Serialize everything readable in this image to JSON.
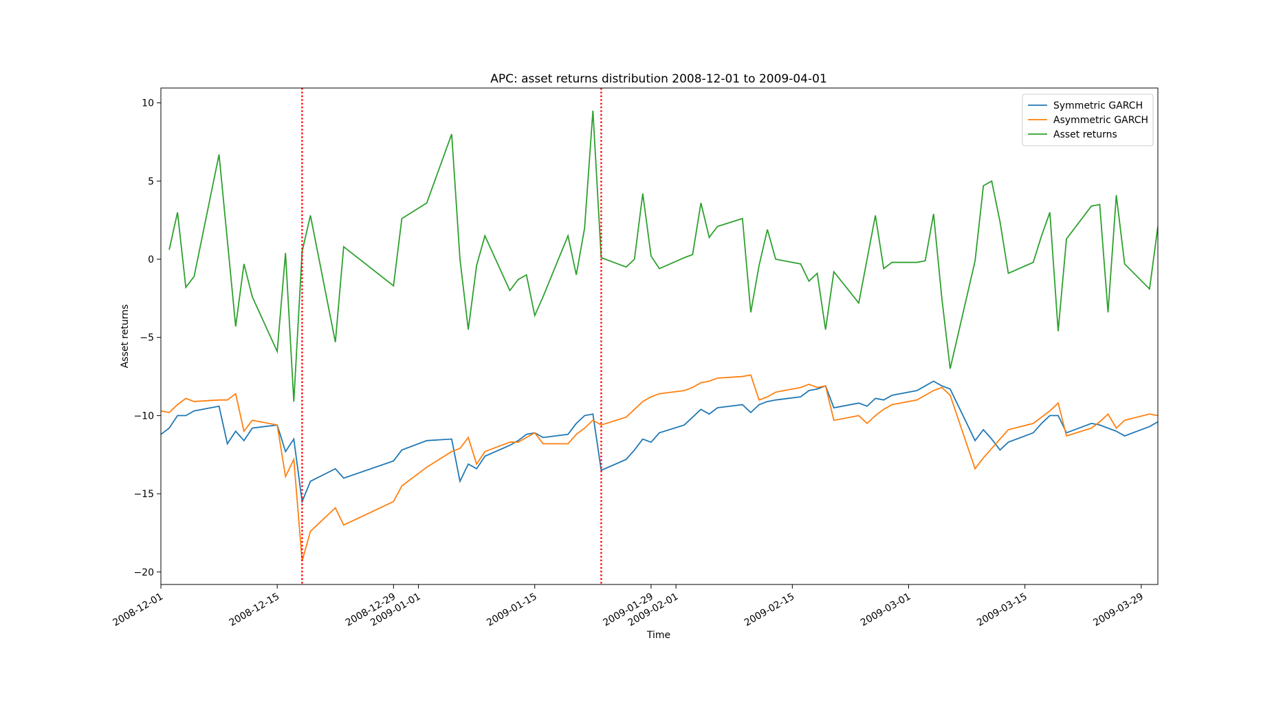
{
  "chart_data": {
    "type": "line",
    "title": "APC: asset returns distribution 2008-12-01 to 2009-04-01",
    "xlabel": "Time",
    "ylabel": "Asset returns",
    "x": [
      "2008-12-01",
      "2008-12-02",
      "2008-12-03",
      "2008-12-04",
      "2008-12-05",
      "2008-12-08",
      "2008-12-09",
      "2008-12-10",
      "2008-12-11",
      "2008-12-12",
      "2008-12-15",
      "2008-12-16",
      "2008-12-17",
      "2008-12-18",
      "2008-12-19",
      "2008-12-22",
      "2008-12-23",
      "2008-12-29",
      "2008-12-30",
      "2009-01-02",
      "2009-01-05",
      "2009-01-06",
      "2009-01-07",
      "2009-01-08",
      "2009-01-09",
      "2009-01-12",
      "2009-01-13",
      "2009-01-14",
      "2009-01-15",
      "2009-01-16",
      "2009-01-19",
      "2009-01-20",
      "2009-01-21",
      "2009-01-22",
      "2009-01-23",
      "2009-01-26",
      "2009-01-27",
      "2009-01-28",
      "2009-01-29",
      "2009-01-30",
      "2009-02-02",
      "2009-02-03",
      "2009-02-04",
      "2009-02-05",
      "2009-02-06",
      "2009-02-09",
      "2009-02-10",
      "2009-02-11",
      "2009-02-12",
      "2009-02-13",
      "2009-02-16",
      "2009-02-17",
      "2009-02-18",
      "2009-02-19",
      "2009-02-20",
      "2009-02-23",
      "2009-02-24",
      "2009-02-25",
      "2009-02-26",
      "2009-02-27",
      "2009-03-02",
      "2009-03-03",
      "2009-03-04",
      "2009-03-05",
      "2009-03-06",
      "2009-03-09",
      "2009-03-10",
      "2009-03-11",
      "2009-03-12",
      "2009-03-13",
      "2009-03-16",
      "2009-03-17",
      "2009-03-18",
      "2009-03-19",
      "2009-03-20",
      "2009-03-23",
      "2009-03-24",
      "2009-03-25",
      "2009-03-26",
      "2009-03-27",
      "2009-03-30",
      "2009-03-31"
    ],
    "series": [
      {
        "name": "Symmetric GARCH",
        "color": "#1f77b4",
        "values": [
          -11.2,
          -10.8,
          -10.0,
          -10.0,
          -9.7,
          -9.4,
          -11.8,
          -11.0,
          -11.6,
          -10.8,
          -10.6,
          -12.3,
          -11.5,
          -15.5,
          -14.2,
          -13.4,
          -14.0,
          -12.9,
          -12.2,
          -11.6,
          -11.5,
          -14.2,
          -13.1,
          -13.4,
          -12.6,
          -11.9,
          -11.6,
          -11.2,
          -11.1,
          -11.4,
          -11.2,
          -10.5,
          -10.0,
          -9.9,
          -13.5,
          -12.8,
          -12.2,
          -11.5,
          -11.7,
          -11.1,
          -10.6,
          -10.1,
          -9.6,
          -9.9,
          -9.5,
          -9.3,
          -9.8,
          -9.3,
          -9.1,
          -9.0,
          -8.8,
          -8.4,
          -8.3,
          -8.1,
          -9.5,
          -9.2,
          -9.4,
          -8.9,
          -9.0,
          -8.7,
          -8.4,
          -8.1,
          -7.8,
          -8.1,
          -8.3,
          -11.6,
          -10.9,
          -11.5,
          -12.2,
          -11.7,
          -11.1,
          -10.5,
          -10.0,
          -10.0,
          -11.1,
          -10.5,
          -10.6,
          -10.8,
          -11.0,
          -11.3,
          -10.7,
          -10.4
        ]
      },
      {
        "name": "Asymmetric GARCH",
        "color": "#ff7f0e",
        "values": [
          -9.7,
          -9.8,
          -9.3,
          -8.9,
          -9.1,
          -9.0,
          -9.0,
          -8.6,
          -11.0,
          -10.3,
          -10.6,
          -13.9,
          -12.8,
          -19.3,
          -17.4,
          -15.9,
          -17.0,
          -15.5,
          -14.5,
          -13.3,
          -12.3,
          -12.1,
          -11.4,
          -13.1,
          -12.3,
          -11.7,
          -11.7,
          -11.4,
          -11.1,
          -11.8,
          -11.8,
          -11.2,
          -10.8,
          -10.3,
          -10.6,
          -10.1,
          -9.6,
          -9.1,
          -8.8,
          -8.6,
          -8.4,
          -8.2,
          -7.9,
          -7.8,
          -7.6,
          -7.5,
          -7.4,
          -9.0,
          -8.8,
          -8.5,
          -8.2,
          -8.0,
          -8.2,
          -8.1,
          -10.3,
          -10.0,
          -10.5,
          -10.0,
          -9.6,
          -9.3,
          -9.0,
          -8.7,
          -8.4,
          -8.2,
          -8.7,
          -13.4,
          -12.7,
          -12.1,
          -11.5,
          -10.9,
          -10.5,
          -10.1,
          -9.7,
          -9.2,
          -11.3,
          -10.8,
          -10.4,
          -9.9,
          -10.8,
          -10.3,
          -9.9,
          -10.0
        ]
      },
      {
        "name": "Asset returns",
        "color": "#2ca02c",
        "values": [
          null,
          0.6,
          3.0,
          -1.8,
          -1.1,
          6.7,
          1.2,
          -4.3,
          -0.3,
          -2.4,
          -5.9,
          0.4,
          -9.1,
          0.5,
          2.8,
          -5.3,
          0.8,
          -1.7,
          2.6,
          3.6,
          8.0,
          0.0,
          -4.5,
          -0.4,
          1.5,
          -2.0,
          -1.3,
          -1.0,
          -3.6,
          -2.4,
          1.5,
          -1.0,
          2.0,
          9.5,
          0.1,
          -0.5,
          0.0,
          4.2,
          0.2,
          -0.6,
          0.1,
          0.3,
          3.6,
          1.4,
          2.1,
          2.6,
          -3.4,
          -0.4,
          1.9,
          0.0,
          -0.3,
          -1.4,
          -0.9,
          -4.5,
          -0.8,
          -2.8,
          0.0,
          2.8,
          -0.6,
          -0.2,
          -0.2,
          -0.1,
          2.9,
          -2.5,
          -7.0,
          -0.1,
          4.7,
          5.0,
          2.4,
          -0.9,
          -0.2,
          1.5,
          3.0,
          -4.6,
          1.3,
          3.4,
          3.5,
          -3.4,
          4.1,
          -0.3,
          -1.9,
          2.1
        ]
      }
    ],
    "xlim": [
      "2008-12-01",
      "2009-03-31"
    ],
    "xticks": [
      "2008-12-01",
      "2008-12-15",
      "2008-12-29",
      "2009-01-01",
      "2009-01-15",
      "2009-01-29",
      "2009-02-01",
      "2009-02-15",
      "2009-03-01",
      "2009-03-15",
      "2009-03-29"
    ],
    "ylim": [
      -20.8,
      10.95
    ],
    "yticks": [
      {
        "value": -20,
        "label": "−20"
      },
      {
        "value": -15,
        "label": "−15"
      },
      {
        "value": -10,
        "label": "−10"
      },
      {
        "value": -5,
        "label": "−5"
      },
      0,
      5,
      10
    ],
    "vlines": [
      "2008-12-18",
      "2009-01-23"
    ],
    "vline_color": "#ff0000",
    "legend": "upper right",
    "grid": false
  }
}
